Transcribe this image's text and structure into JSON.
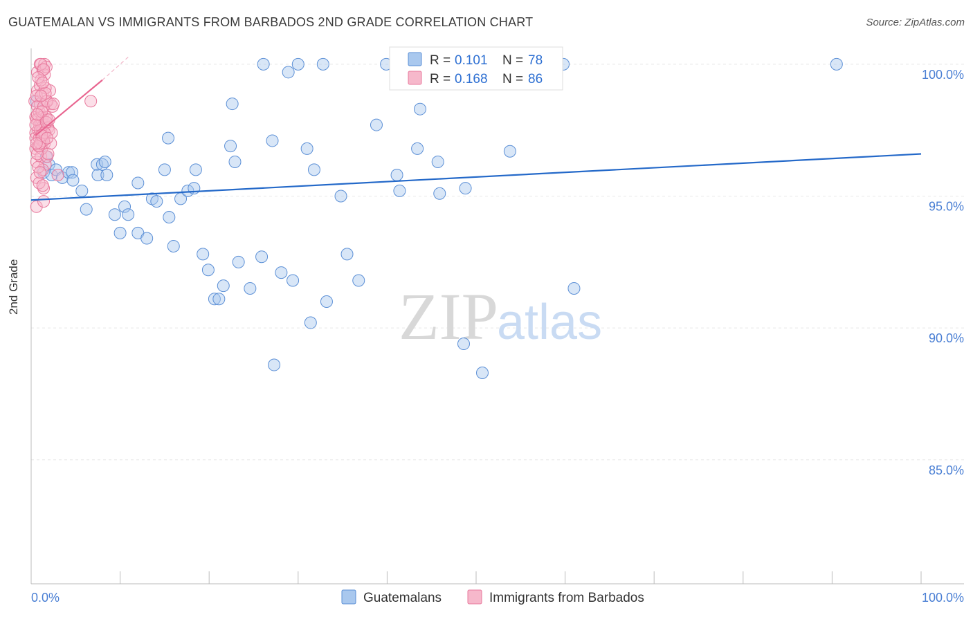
{
  "header": {
    "title": "GUATEMALAN VS IMMIGRANTS FROM BARBADOS 2ND GRADE CORRELATION CHART",
    "source": "Source: ZipAtlas.com"
  },
  "watermark": {
    "zip": "ZIP",
    "atlas": "atlas"
  },
  "legend": {
    "r_label": "R =",
    "n_label": "N =",
    "rows": [
      {
        "r": "0.101",
        "n": "78",
        "color": "#a9c8ee"
      },
      {
        "r": "0.168",
        "n": "86",
        "color": "#f6b8cb"
      }
    ]
  },
  "colors": {
    "blue_fill": "#a9c8ee",
    "blue_stroke": "#5b8fd6",
    "blue_line": "#2469c9",
    "pink_fill": "#f6b8cb",
    "pink_stroke": "#e8789c",
    "pink_line": "#e8648f",
    "grid": "#e6e6e6"
  },
  "chart_data": {
    "type": "scatter",
    "title": "GUATEMALAN VS IMMIGRANTS FROM BARBADOS 2ND GRADE CORRELATION CHART",
    "xlabel": "",
    "ylabel": "2nd Grade",
    "xlim": [
      0,
      100
    ],
    "ylim": [
      80.3,
      100.6
    ],
    "x_tick_labels": [
      "0.0%",
      "100.0%"
    ],
    "y_ticks": [
      85,
      90,
      95,
      100
    ],
    "y_tick_labels": [
      "85.0%",
      "90.0%",
      "95.0%",
      "100.0%"
    ],
    "grid": true,
    "legend_position": "top-center",
    "series": [
      {
        "name": "Guatemalans",
        "r": 0.101,
        "n": 78,
        "trend": {
          "x": [
            0,
            100
          ],
          "y": [
            94.85,
            96.6
          ]
        },
        "points": [
          [
            0.6,
            98.6
          ],
          [
            1.4,
            95.9
          ],
          [
            1.7,
            96.5
          ],
          [
            2.0,
            96.2
          ],
          [
            2.3,
            95.8
          ],
          [
            2.8,
            96.0
          ],
          [
            3.5,
            95.7
          ],
          [
            4.2,
            95.9
          ],
          [
            4.6,
            95.9
          ],
          [
            4.7,
            95.6
          ],
          [
            5.7,
            95.2
          ],
          [
            6.2,
            94.5
          ],
          [
            7.4,
            96.2
          ],
          [
            7.5,
            95.8
          ],
          [
            8.0,
            96.2
          ],
          [
            8.3,
            96.3
          ],
          [
            8.5,
            95.8
          ],
          [
            9.4,
            94.3
          ],
          [
            10.0,
            93.6
          ],
          [
            10.5,
            94.6
          ],
          [
            10.9,
            94.3
          ],
          [
            12.0,
            95.5
          ],
          [
            12.0,
            93.6
          ],
          [
            13.0,
            93.4
          ],
          [
            13.6,
            94.9
          ],
          [
            14.1,
            94.8
          ],
          [
            15.0,
            96.0
          ],
          [
            15.4,
            97.2
          ],
          [
            15.5,
            94.2
          ],
          [
            16.0,
            93.1
          ],
          [
            16.8,
            94.9
          ],
          [
            17.6,
            95.2
          ],
          [
            18.3,
            95.3
          ],
          [
            18.5,
            96.0
          ],
          [
            19.3,
            92.8
          ],
          [
            19.9,
            92.2
          ],
          [
            20.6,
            91.1
          ],
          [
            21.1,
            91.1
          ],
          [
            21.6,
            91.6
          ],
          [
            22.4,
            96.9
          ],
          [
            22.6,
            98.5
          ],
          [
            22.9,
            96.3
          ],
          [
            23.3,
            92.5
          ],
          [
            24.6,
            91.5
          ],
          [
            25.9,
            92.7
          ],
          [
            26.1,
            100.0
          ],
          [
            27.1,
            97.1
          ],
          [
            27.3,
            88.6
          ],
          [
            28.1,
            92.1
          ],
          [
            28.9,
            99.7
          ],
          [
            29.4,
            91.8
          ],
          [
            30.0,
            100.0
          ],
          [
            31.0,
            96.8
          ],
          [
            31.4,
            90.2
          ],
          [
            31.8,
            96.0
          ],
          [
            32.8,
            100.0
          ],
          [
            33.2,
            91.0
          ],
          [
            34.8,
            95.0
          ],
          [
            35.5,
            92.8
          ],
          [
            36.8,
            91.8
          ],
          [
            38.8,
            97.7
          ],
          [
            39.9,
            100.0
          ],
          [
            41.1,
            95.8
          ],
          [
            41.4,
            95.2
          ],
          [
            43.4,
            96.8
          ],
          [
            43.7,
            98.3
          ],
          [
            44.9,
            100.0
          ],
          [
            45.7,
            96.3
          ],
          [
            45.9,
            95.1
          ],
          [
            48.6,
            89.4
          ],
          [
            48.8,
            95.3
          ],
          [
            50.7,
            88.3
          ],
          [
            53.1,
            100.0
          ],
          [
            53.8,
            96.7
          ],
          [
            58.1,
            100.0
          ],
          [
            59.8,
            100.0
          ],
          [
            61.0,
            91.5
          ],
          [
            90.5,
            100.0
          ]
        ]
      },
      {
        "name": "Immigrants from Barbados",
        "r": 0.168,
        "n": 86,
        "trend": {
          "x": [
            0.5,
            8.0
          ],
          "y": [
            97.3,
            99.4
          ]
        },
        "points": [
          [
            0.4,
            98.6
          ],
          [
            0.5,
            98.0
          ],
          [
            0.5,
            97.4
          ],
          [
            0.5,
            97.2
          ],
          [
            0.5,
            96.8
          ],
          [
            0.6,
            96.3
          ],
          [
            0.6,
            95.7
          ],
          [
            0.6,
            94.6
          ],
          [
            0.7,
            99.0
          ],
          [
            0.7,
            99.7
          ],
          [
            0.8,
            97.9
          ],
          [
            0.8,
            97.5
          ],
          [
            0.8,
            96.9
          ],
          [
            0.9,
            97.7
          ],
          [
            0.9,
            98.2
          ],
          [
            1.0,
            100.0
          ],
          [
            1.0,
            99.2
          ],
          [
            1.0,
            98.5
          ],
          [
            1.1,
            97.8
          ],
          [
            1.1,
            97.3
          ],
          [
            1.1,
            96.5
          ],
          [
            1.2,
            97.9
          ],
          [
            1.2,
            97.6
          ],
          [
            1.2,
            97.1
          ],
          [
            1.3,
            99.8
          ],
          [
            1.3,
            98.9
          ],
          [
            1.3,
            98.0
          ],
          [
            1.3,
            97.5
          ],
          [
            1.4,
            95.3
          ],
          [
            1.4,
            94.8
          ],
          [
            1.5,
            100.0
          ],
          [
            1.5,
            99.6
          ],
          [
            1.5,
            97.3
          ],
          [
            1.6,
            97.7
          ],
          [
            1.6,
            96.2
          ],
          [
            1.7,
            99.9
          ],
          [
            1.7,
            98.6
          ],
          [
            1.7,
            98.0
          ],
          [
            1.8,
            97.9
          ],
          [
            1.8,
            96.5
          ],
          [
            1.9,
            97.6
          ],
          [
            2.0,
            97.5
          ],
          [
            2.1,
            99.0
          ],
          [
            2.2,
            98.5
          ],
          [
            2.3,
            97.4
          ],
          [
            2.4,
            98.4
          ],
          [
            3.0,
            95.8
          ],
          [
            6.7,
            98.6
          ],
          [
            0.9,
            97.2
          ],
          [
            1.0,
            97.5
          ],
          [
            1.2,
            96.8
          ],
          [
            0.7,
            98.4
          ],
          [
            0.6,
            97.9
          ],
          [
            1.4,
            98.4
          ],
          [
            1.6,
            99.1
          ],
          [
            1.8,
            98.6
          ],
          [
            1.1,
            99.4
          ],
          [
            0.9,
            95.5
          ],
          [
            1.3,
            96.0
          ],
          [
            1.5,
            97.0
          ],
          [
            0.8,
            96.1
          ],
          [
            1.0,
            95.9
          ],
          [
            1.9,
            96.6
          ],
          [
            2.2,
            97.0
          ],
          [
            0.5,
            97.7
          ],
          [
            0.6,
            98.8
          ],
          [
            0.7,
            96.6
          ],
          [
            1.2,
            98.2
          ],
          [
            1.4,
            97.1
          ],
          [
            1.7,
            97.8
          ],
          [
            1.1,
            100.0
          ],
          [
            1.4,
            99.8
          ],
          [
            0.8,
            99.5
          ],
          [
            1.6,
            98.9
          ],
          [
            2.0,
            97.9
          ],
          [
            1.3,
            95.4
          ],
          [
            0.9,
            96.9
          ],
          [
            1.5,
            97.4
          ],
          [
            1.0,
            97.0
          ],
          [
            1.2,
            97.3
          ],
          [
            0.6,
            97.0
          ],
          [
            1.8,
            97.2
          ],
          [
            1.1,
            98.8
          ],
          [
            1.3,
            99.3
          ],
          [
            0.7,
            98.1
          ],
          [
            2.5,
            98.5
          ]
        ]
      }
    ]
  }
}
